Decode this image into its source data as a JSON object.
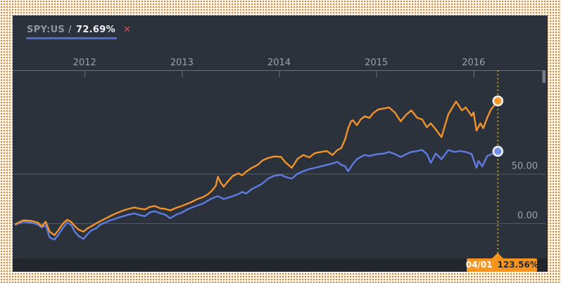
{
  "panel": {
    "legend": {
      "symbol": "SPY:US",
      "separator": "/",
      "value": "72.69%",
      "close_label": "✕"
    }
  },
  "tooltip": {
    "date": "04/01",
    "value": "123.56%"
  },
  "colors": {
    "frame_dot": "#e0872c",
    "frame_bg": "#fffdfa",
    "panel_bg": "#2b323c",
    "footer_bg": "#22262d",
    "grid_line": "#525a65",
    "axis_line": "#6a7280",
    "axis_label": "#9aa2ad",
    "range_handle": "#767e89",
    "legend_symbol": "#8e96a4",
    "legend_value": "#eef1f4",
    "legend_close": "#d8504a",
    "legend_underline": "#4a6cdb",
    "cursor_line": "#c8922e",
    "marker_ring": "#eef1f3",
    "tooltip_bg": "#f7941e",
    "tooltip_date_text": "#ffffff",
    "tooltip_value_text": "#222c3a"
  },
  "chart_data": {
    "type": "line",
    "title": "",
    "x_unit": "year (decimal)",
    "y_unit": "percent return",
    "xlim": [
      2011.26,
      2016.74
    ],
    "ylim": [
      -35.5,
      154.6
    ],
    "grid": "horizontal-only",
    "x_axis": {
      "position": "top",
      "ticks": [
        2012,
        2013,
        2014,
        2015,
        2016
      ]
    },
    "y_axis": {
      "position": "right",
      "ticks": [
        {
          "value": 50,
          "label": "50.00"
        },
        {
          "value": 0,
          "label": "0.00"
        }
      ]
    },
    "cursor": {
      "x": 2016.25,
      "date_label": "04/01",
      "value_label": "123.56%"
    },
    "series": [
      {
        "id": "spy-us",
        "label": "SPY:US",
        "color": "#5e7bdf",
        "marker_fill": "#7590ea",
        "end_value_pct": 72.69,
        "points": [
          [
            2011.29,
            -1.4
          ],
          [
            2011.37,
            1.5
          ],
          [
            2011.45,
            0.7
          ],
          [
            2011.52,
            -1.4
          ],
          [
            2011.56,
            -4.3
          ],
          [
            2011.6,
            -2
          ],
          [
            2011.64,
            -14.4
          ],
          [
            2011.69,
            -16.5
          ],
          [
            2011.73,
            -11.5
          ],
          [
            2011.78,
            -4.3
          ],
          [
            2011.82,
            0.7
          ],
          [
            2011.86,
            -1.4
          ],
          [
            2011.9,
            -8.6
          ],
          [
            2011.94,
            -13
          ],
          [
            2011.99,
            -15.8
          ],
          [
            2012.03,
            -10.8
          ],
          [
            2012.07,
            -7.2
          ],
          [
            2012.12,
            -5
          ],
          [
            2012.16,
            -1.4
          ],
          [
            2012.21,
            0.7
          ],
          [
            2012.26,
            2.9
          ],
          [
            2012.31,
            4.3
          ],
          [
            2012.35,
            5.8
          ],
          [
            2012.4,
            7.2
          ],
          [
            2012.45,
            8.6
          ],
          [
            2012.51,
            10
          ],
          [
            2012.58,
            7.9
          ],
          [
            2012.62,
            7.2
          ],
          [
            2012.67,
            11
          ],
          [
            2012.72,
            12.2
          ],
          [
            2012.78,
            10
          ],
          [
            2012.83,
            8.6
          ],
          [
            2012.88,
            5
          ],
          [
            2012.94,
            8.6
          ],
          [
            2013.0,
            10.8
          ],
          [
            2013.05,
            13.7
          ],
          [
            2013.1,
            15.8
          ],
          [
            2013.16,
            18
          ],
          [
            2013.22,
            20.1
          ],
          [
            2013.27,
            23
          ],
          [
            2013.31,
            25.2
          ],
          [
            2013.37,
            27.5
          ],
          [
            2013.43,
            24.5
          ],
          [
            2013.48,
            26
          ],
          [
            2013.52,
            27.3
          ],
          [
            2013.58,
            29.5
          ],
          [
            2013.62,
            31.7
          ],
          [
            2013.66,
            30
          ],
          [
            2013.72,
            34.5
          ],
          [
            2013.78,
            37.4
          ],
          [
            2013.83,
            40.3
          ],
          [
            2013.89,
            45.3
          ],
          [
            2013.95,
            48
          ],
          [
            2014.02,
            49
          ],
          [
            2014.06,
            47
          ],
          [
            2014.13,
            45
          ],
          [
            2014.19,
            50
          ],
          [
            2014.25,
            52.5
          ],
          [
            2014.31,
            54.7
          ],
          [
            2014.37,
            56
          ],
          [
            2014.43,
            57.5
          ],
          [
            2014.49,
            59
          ],
          [
            2014.55,
            60.4
          ],
          [
            2014.6,
            62
          ],
          [
            2014.64,
            59
          ],
          [
            2014.68,
            57.5
          ],
          [
            2014.71,
            52.5
          ],
          [
            2014.76,
            60
          ],
          [
            2014.8,
            64.7
          ],
          [
            2014.84,
            67
          ],
          [
            2014.88,
            69
          ],
          [
            2014.93,
            68
          ],
          [
            2014.97,
            69
          ],
          [
            2015.02,
            70
          ],
          [
            2015.08,
            70.5
          ],
          [
            2015.13,
            72
          ],
          [
            2015.19,
            70
          ],
          [
            2015.25,
            67
          ],
          [
            2015.31,
            70
          ],
          [
            2015.36,
            72
          ],
          [
            2015.42,
            73
          ],
          [
            2015.47,
            74
          ],
          [
            2015.52,
            70
          ],
          [
            2015.56,
            61
          ],
          [
            2015.61,
            70.5
          ],
          [
            2015.67,
            64.7
          ],
          [
            2015.74,
            74
          ],
          [
            2015.8,
            72
          ],
          [
            2015.86,
            73
          ],
          [
            2015.92,
            72
          ],
          [
            2015.98,
            70
          ],
          [
            2016.03,
            56
          ],
          [
            2016.05,
            63
          ],
          [
            2016.09,
            57.5
          ],
          [
            2016.14,
            68
          ],
          [
            2016.19,
            70
          ],
          [
            2016.25,
            72.69
          ]
        ]
      },
      {
        "id": "compared-security",
        "label": "",
        "color": "#f2922a",
        "marker_fill": "#f79a23",
        "end_value_pct": 123.56,
        "points": [
          [
            2011.29,
            -0.7
          ],
          [
            2011.37,
            3
          ],
          [
            2011.45,
            2.5
          ],
          [
            2011.52,
            0.5
          ],
          [
            2011.56,
            -3
          ],
          [
            2011.6,
            1.5
          ],
          [
            2011.64,
            -8.5
          ],
          [
            2011.69,
            -12
          ],
          [
            2011.73,
            -7
          ],
          [
            2011.78,
            0
          ],
          [
            2011.82,
            3.5
          ],
          [
            2011.86,
            1.5
          ],
          [
            2011.9,
            -3
          ],
          [
            2011.94,
            -6.5
          ],
          [
            2011.99,
            -8.5
          ],
          [
            2012.03,
            -5
          ],
          [
            2012.07,
            -3
          ],
          [
            2012.12,
            0
          ],
          [
            2012.16,
            2
          ],
          [
            2012.21,
            4.5
          ],
          [
            2012.26,
            7
          ],
          [
            2012.31,
            9.5
          ],
          [
            2012.35,
            11
          ],
          [
            2012.4,
            13
          ],
          [
            2012.45,
            14.5
          ],
          [
            2012.51,
            16
          ],
          [
            2012.58,
            14.5
          ],
          [
            2012.62,
            14
          ],
          [
            2012.67,
            16.5
          ],
          [
            2012.72,
            17.5
          ],
          [
            2012.78,
            15
          ],
          [
            2012.83,
            14.5
          ],
          [
            2012.88,
            13
          ],
          [
            2012.94,
            15.5
          ],
          [
            2013.0,
            17.5
          ],
          [
            2013.05,
            19.5
          ],
          [
            2013.1,
            21.5
          ],
          [
            2013.16,
            24.5
          ],
          [
            2013.22,
            26.5
          ],
          [
            2013.27,
            29.5
          ],
          [
            2013.31,
            33
          ],
          [
            2013.35,
            38
          ],
          [
            2013.37,
            47
          ],
          [
            2013.4,
            41
          ],
          [
            2013.43,
            37
          ],
          [
            2013.48,
            43
          ],
          [
            2013.52,
            47.5
          ],
          [
            2013.58,
            50.5
          ],
          [
            2013.62,
            48.5
          ],
          [
            2013.66,
            52
          ],
          [
            2013.72,
            56
          ],
          [
            2013.78,
            59
          ],
          [
            2013.83,
            63.5
          ],
          [
            2013.89,
            66
          ],
          [
            2013.95,
            67.5
          ],
          [
            2014.02,
            67
          ],
          [
            2014.06,
            62
          ],
          [
            2014.13,
            56
          ],
          [
            2014.19,
            65
          ],
          [
            2014.25,
            69
          ],
          [
            2014.31,
            66.5
          ],
          [
            2014.37,
            71
          ],
          [
            2014.43,
            72
          ],
          [
            2014.49,
            73
          ],
          [
            2014.55,
            69
          ],
          [
            2014.6,
            74
          ],
          [
            2014.64,
            76
          ],
          [
            2014.68,
            85
          ],
          [
            2014.71,
            96
          ],
          [
            2014.74,
            103
          ],
          [
            2014.76,
            104
          ],
          [
            2014.8,
            99
          ],
          [
            2014.84,
            105
          ],
          [
            2014.88,
            108
          ],
          [
            2014.93,
            106.5
          ],
          [
            2014.97,
            111.5
          ],
          [
            2015.02,
            115
          ],
          [
            2015.08,
            116
          ],
          [
            2015.13,
            117
          ],
          [
            2015.19,
            112
          ],
          [
            2015.25,
            103
          ],
          [
            2015.31,
            110
          ],
          [
            2015.36,
            114
          ],
          [
            2015.42,
            106.5
          ],
          [
            2015.47,
            105
          ],
          [
            2015.52,
            97
          ],
          [
            2015.56,
            101
          ],
          [
            2015.61,
            95
          ],
          [
            2015.67,
            87
          ],
          [
            2015.74,
            110
          ],
          [
            2015.82,
            123
          ],
          [
            2015.88,
            114
          ],
          [
            2015.92,
            117
          ],
          [
            2015.98,
            108.5
          ],
          [
            2016.0,
            112
          ],
          [
            2016.03,
            93.5
          ],
          [
            2016.07,
            101
          ],
          [
            2016.1,
            96
          ],
          [
            2016.14,
            106.5
          ],
          [
            2016.18,
            115
          ],
          [
            2016.25,
            123.56
          ]
        ]
      }
    ]
  }
}
